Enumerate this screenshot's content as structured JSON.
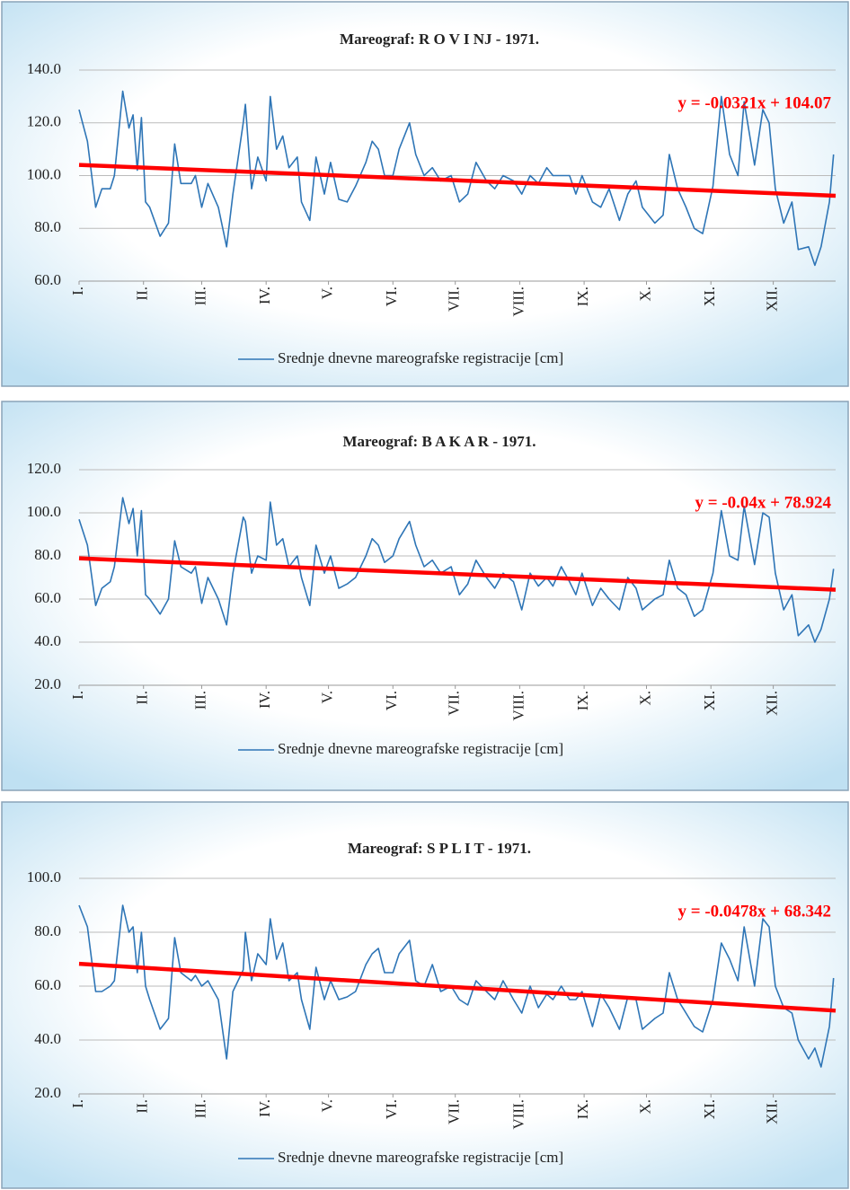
{
  "chart_data": [
    {
      "type": "line",
      "title": "Mareograf: R O V I NJ - 1971.",
      "x": [
        1,
        5,
        9,
        12,
        16,
        18,
        22,
        25,
        27,
        29,
        31,
        33,
        35,
        40,
        44,
        47,
        50,
        55,
        57,
        60,
        63,
        68,
        72,
        75,
        80,
        81,
        84,
        87,
        91,
        93,
        96,
        99,
        102,
        106,
        108,
        112,
        115,
        119,
        122,
        126,
        130,
        134,
        139,
        142,
        145,
        148,
        152,
        155,
        160,
        163,
        167,
        171,
        175,
        180,
        184,
        188,
        192,
        197,
        201,
        205,
        210,
        214,
        218,
        222,
        226,
        229,
        233,
        237,
        240,
        243,
        248,
        252,
        256,
        261,
        265,
        269,
        272,
        278,
        282,
        285,
        289,
        293,
        297,
        301,
        306,
        310,
        314,
        318,
        321,
        326,
        330,
        333,
        336,
        340,
        344,
        347,
        352,
        355,
        358,
        362,
        364
      ],
      "series": [
        {
          "name": "Srednje dnevne mareografske registracije [cm]",
          "color": "#2e75b6",
          "values": [
            125,
            113,
            88,
            95,
            95,
            100,
            132,
            118,
            123,
            102,
            122,
            90,
            88,
            77,
            82,
            112,
            97,
            97,
            100,
            88,
            97,
            88,
            73,
            93,
            120,
            127,
            95,
            107,
            98,
            130,
            110,
            115,
            103,
            107,
            90,
            83,
            107,
            93,
            105,
            91,
            90,
            96,
            105,
            113,
            110,
            100,
            100,
            110,
            120,
            108,
            100,
            103,
            98,
            100,
            90,
            93,
            105,
            98,
            95,
            100,
            98,
            93,
            100,
            97,
            103,
            100,
            100,
            100,
            93,
            100,
            90,
            88,
            95,
            83,
            93,
            98,
            88,
            82,
            85,
            108,
            95,
            88,
            80,
            78,
            96,
            130,
            108,
            100,
            128,
            104,
            125,
            120,
            95,
            82,
            90,
            72,
            73,
            66,
            73,
            90,
            108
          ]
        }
      ],
      "trendline": {
        "label": "y = -0.0321x + 104.07",
        "slope": -0.0321,
        "intercept": 104.07,
        "color": "#ff0000"
      },
      "xlim": [
        1,
        365
      ],
      "xticks": [
        {
          "value": 1,
          "label": "I."
        },
        {
          "value": 32,
          "label": "II."
        },
        {
          "value": 60,
          "label": "III."
        },
        {
          "value": 91,
          "label": "IV."
        },
        {
          "value": 121,
          "label": "V."
        },
        {
          "value": 152,
          "label": "VI."
        },
        {
          "value": 182,
          "label": "VII."
        },
        {
          "value": 213,
          "label": "VIII."
        },
        {
          "value": 244,
          "label": "IX."
        },
        {
          "value": 274,
          "label": "X."
        },
        {
          "value": 305,
          "label": "XI."
        },
        {
          "value": 335,
          "label": "XII."
        }
      ],
      "ylim": [
        60,
        140
      ],
      "yticks": [
        {
          "value": 60,
          "label": "60.0"
        },
        {
          "value": 80,
          "label": "80.0"
        },
        {
          "value": 100,
          "label": "100.0"
        },
        {
          "value": 120,
          "label": "120.0"
        },
        {
          "value": 140,
          "label": "140.0"
        }
      ],
      "grid": true,
      "legend": "bottom"
    },
    {
      "type": "line",
      "title": "Mareograf: B A K A R - 1971.",
      "x": [
        1,
        5,
        9,
        12,
        16,
        18,
        22,
        25,
        27,
        29,
        31,
        33,
        35,
        40,
        44,
        47,
        50,
        55,
        57,
        60,
        63,
        68,
        72,
        75,
        80,
        81,
        84,
        87,
        91,
        93,
        96,
        99,
        102,
        106,
        108,
        112,
        115,
        119,
        122,
        126,
        130,
        134,
        139,
        142,
        145,
        148,
        152,
        155,
        160,
        163,
        167,
        171,
        175,
        180,
        184,
        188,
        192,
        197,
        201,
        205,
        210,
        214,
        218,
        222,
        226,
        229,
        233,
        237,
        240,
        243,
        248,
        252,
        256,
        261,
        265,
        269,
        272,
        278,
        282,
        285,
        289,
        293,
        297,
        301,
        306,
        310,
        314,
        318,
        321,
        326,
        330,
        333,
        336,
        340,
        344,
        347,
        352,
        355,
        358,
        362,
        364
      ],
      "series": [
        {
          "name": "Srednje dnevne mareografske registracije [cm]",
          "color": "#2e75b6",
          "values": [
            97,
            85,
            57,
            65,
            68,
            75,
            107,
            95,
            102,
            80,
            101,
            62,
            60,
            53,
            60,
            87,
            75,
            72,
            75,
            58,
            70,
            60,
            48,
            72,
            98,
            96,
            72,
            80,
            78,
            105,
            85,
            88,
            75,
            80,
            70,
            57,
            85,
            72,
            80,
            65,
            67,
            70,
            80,
            88,
            85,
            77,
            80,
            88,
            96,
            85,
            75,
            78,
            72,
            75,
            62,
            67,
            78,
            70,
            65,
            72,
            68,
            55,
            72,
            66,
            70,
            66,
            75,
            68,
            62,
            72,
            57,
            65,
            60,
            55,
            70,
            65,
            55,
            60,
            62,
            78,
            65,
            62,
            52,
            55,
            72,
            101,
            80,
            78,
            103,
            76,
            100,
            98,
            72,
            55,
            62,
            43,
            48,
            40,
            46,
            60,
            74
          ]
        }
      ],
      "trendline": {
        "label": "y = -0.04x + 78.924",
        "slope": -0.04,
        "intercept": 78.924,
        "color": "#ff0000"
      },
      "xlim": [
        1,
        365
      ],
      "xticks": [
        {
          "value": 1,
          "label": "I."
        },
        {
          "value": 32,
          "label": "II."
        },
        {
          "value": 60,
          "label": "III."
        },
        {
          "value": 91,
          "label": "IV."
        },
        {
          "value": 121,
          "label": "V."
        },
        {
          "value": 152,
          "label": "VI."
        },
        {
          "value": 182,
          "label": "VII."
        },
        {
          "value": 213,
          "label": "VIII."
        },
        {
          "value": 244,
          "label": "IX."
        },
        {
          "value": 274,
          "label": "X."
        },
        {
          "value": 305,
          "label": "XI."
        },
        {
          "value": 335,
          "label": "XII."
        }
      ],
      "ylim": [
        20,
        120
      ],
      "yticks": [
        {
          "value": 20,
          "label": "20.0"
        },
        {
          "value": 40,
          "label": "40.0"
        },
        {
          "value": 60,
          "label": "60.0"
        },
        {
          "value": 80,
          "label": "80.0"
        },
        {
          "value": 100,
          "label": "100.0"
        },
        {
          "value": 120,
          "label": "120.0"
        }
      ],
      "grid": true,
      "legend": "bottom"
    },
    {
      "type": "line",
      "title": "Mareograf: S P L I T - 1971.",
      "x": [
        1,
        5,
        9,
        12,
        16,
        18,
        22,
        25,
        27,
        29,
        31,
        33,
        35,
        40,
        44,
        47,
        50,
        55,
        57,
        60,
        63,
        68,
        72,
        75,
        80,
        81,
        84,
        87,
        91,
        93,
        96,
        99,
        102,
        106,
        108,
        112,
        115,
        119,
        122,
        126,
        130,
        134,
        139,
        142,
        145,
        148,
        152,
        155,
        160,
        163,
        167,
        171,
        175,
        180,
        184,
        188,
        192,
        197,
        201,
        205,
        210,
        214,
        218,
        222,
        226,
        229,
        233,
        237,
        240,
        243,
        248,
        252,
        256,
        261,
        265,
        269,
        272,
        278,
        282,
        285,
        289,
        293,
        297,
        301,
        306,
        310,
        314,
        318,
        321,
        326,
        330,
        333,
        336,
        340,
        344,
        347,
        352,
        355,
        358,
        362,
        364
      ],
      "series": [
        {
          "name": "Srednje dnevne mareografske registracije [cm]",
          "color": "#2e75b6",
          "values": [
            90,
            82,
            58,
            58,
            60,
            62,
            90,
            80,
            82,
            65,
            80,
            60,
            55,
            44,
            48,
            78,
            65,
            62,
            64,
            60,
            62,
            55,
            33,
            58,
            66,
            80,
            62,
            72,
            68,
            85,
            70,
            76,
            62,
            65,
            55,
            44,
            67,
            55,
            62,
            55,
            56,
            58,
            68,
            72,
            74,
            65,
            65,
            72,
            77,
            62,
            60,
            68,
            58,
            60,
            55,
            53,
            62,
            58,
            55,
            62,
            55,
            50,
            60,
            52,
            57,
            55,
            60,
            55,
            55,
            58,
            45,
            57,
            52,
            44,
            56,
            55,
            44,
            48,
            50,
            65,
            55,
            50,
            45,
            43,
            55,
            76,
            70,
            62,
            82,
            60,
            85,
            82,
            60,
            52,
            50,
            40,
            33,
            37,
            30,
            45,
            63
          ]
        }
      ],
      "trendline": {
        "label": "y = -0.0478x + 68.342",
        "slope": -0.0478,
        "intercept": 68.342,
        "color": "#ff0000"
      },
      "xlim": [
        1,
        365
      ],
      "xticks": [
        {
          "value": 1,
          "label": "I."
        },
        {
          "value": 32,
          "label": "II."
        },
        {
          "value": 60,
          "label": "III."
        },
        {
          "value": 91,
          "label": "IV."
        },
        {
          "value": 121,
          "label": "V."
        },
        {
          "value": 152,
          "label": "VI."
        },
        {
          "value": 182,
          "label": "VII."
        },
        {
          "value": 213,
          "label": "VIII."
        },
        {
          "value": 244,
          "label": "IX."
        },
        {
          "value": 274,
          "label": "X."
        },
        {
          "value": 305,
          "label": "XI."
        },
        {
          "value": 335,
          "label": "XII."
        }
      ],
      "ylim": [
        20,
        100
      ],
      "yticks": [
        {
          "value": 20,
          "label": "20.0"
        },
        {
          "value": 40,
          "label": "40.0"
        },
        {
          "value": 60,
          "label": "60.0"
        },
        {
          "value": 80,
          "label": "80.0"
        },
        {
          "value": 100,
          "label": "100.0"
        }
      ],
      "grid": true,
      "legend": "bottom"
    }
  ]
}
